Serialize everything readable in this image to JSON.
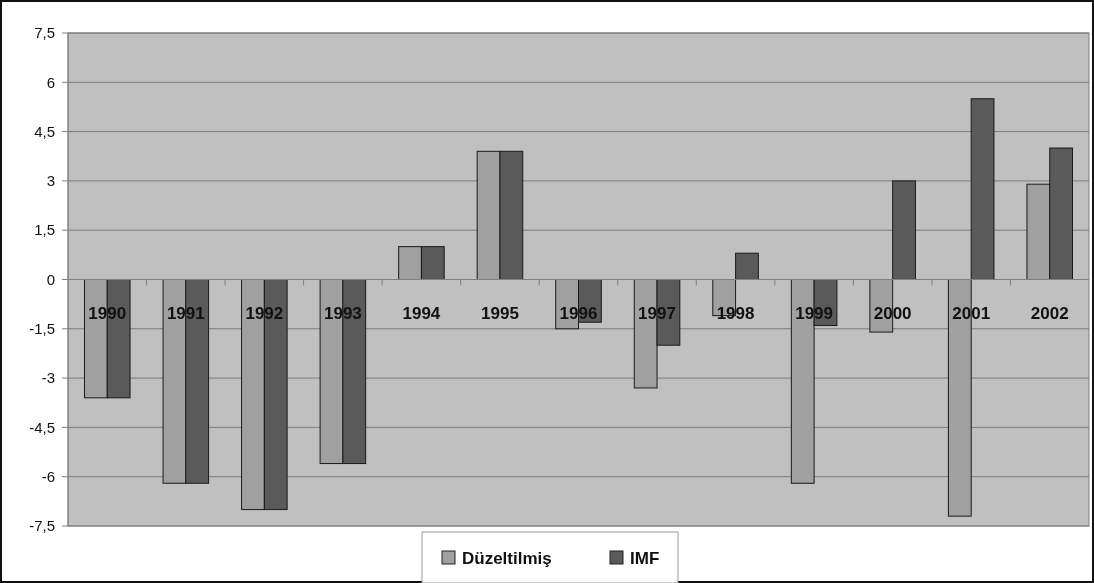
{
  "chart_data": {
    "type": "bar",
    "categories": [
      "1990",
      "1991",
      "1992",
      "1993",
      "1994",
      "1995",
      "1996",
      "1997",
      "1998",
      "1999",
      "2000",
      "2001",
      "2002"
    ],
    "series": [
      {
        "name": "Düzeltilmiş",
        "color": "#a0a0a0",
        "values": [
          -3.6,
          -6.2,
          -7.0,
          -5.6,
          1.0,
          3.9,
          -1.5,
          -3.3,
          -1.1,
          -6.2,
          -1.6,
          -7.2,
          2.9
        ]
      },
      {
        "name": "IMF",
        "color": "#5a5a5a",
        "values": [
          -3.6,
          -6.2,
          -7.0,
          -5.6,
          1.0,
          3.9,
          -1.3,
          -2.0,
          0.8,
          -1.4,
          3.0,
          5.5,
          4.0
        ]
      }
    ],
    "ylim": [
      -7.5,
      7.5
    ],
    "yticks": [
      {
        "value": -7.5,
        "label": "-7,5"
      },
      {
        "value": -6,
        "label": "-6"
      },
      {
        "value": -4.5,
        "label": "-4,5"
      },
      {
        "value": -3,
        "label": "-3"
      },
      {
        "value": -1.5,
        "label": "-1,5"
      },
      {
        "value": 0,
        "label": "0"
      },
      {
        "value": 1.5,
        "label": "1,5"
      },
      {
        "value": 3,
        "label": "3"
      },
      {
        "value": 4.5,
        "label": "4,5"
      },
      {
        "value": 6,
        "label": "6"
      },
      {
        "value": 7.5,
        "label": "7,5"
      }
    ],
    "grid": "y",
    "legend": "bottom"
  }
}
